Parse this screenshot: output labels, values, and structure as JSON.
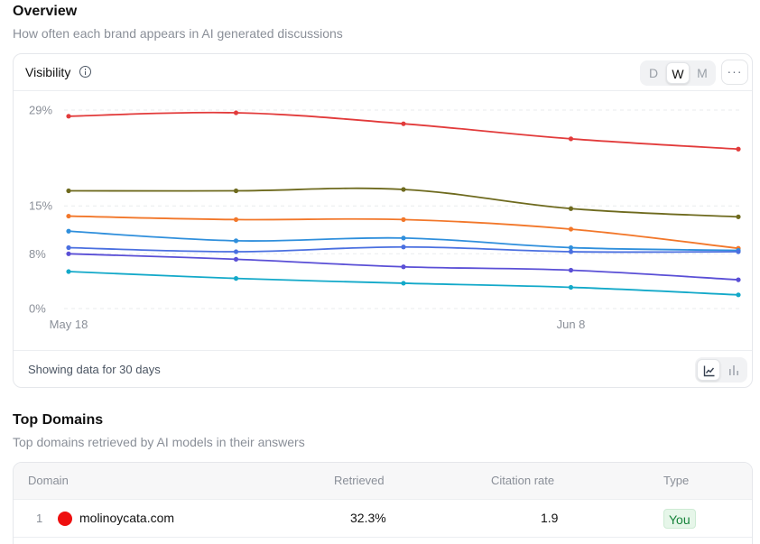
{
  "overview": {
    "title": "Overview",
    "subtitle": "How often each brand appears in AI generated discussions"
  },
  "visibility_card": {
    "title": "Visibility",
    "info_icon": "info-icon",
    "periods": [
      "D",
      "W",
      "M"
    ],
    "active_period": "W",
    "more_label": "···",
    "footer_text": "Showing data for 30 days",
    "view_toggle": {
      "options": [
        "line-chart-icon",
        "bar-chart-icon"
      ],
      "active": "line-chart-icon"
    }
  },
  "chart_data": {
    "type": "line",
    "ytick_labels": [
      "29%",
      "15%",
      "8%",
      "0%"
    ],
    "yticks": [
      29,
      15,
      8,
      0
    ],
    "ylim": [
      0,
      29
    ],
    "xtick_labels": [
      "May 18",
      "Jun 8"
    ],
    "x": [
      "May 18",
      "May 25",
      "Jun 1",
      "Jun 8",
      "Jun 15"
    ],
    "grid": true,
    "series": [
      {
        "color": "#e23b3b",
        "values": [
          28.1,
          28.6,
          27.0,
          24.8,
          23.3
        ]
      },
      {
        "color": "#6e6a1e",
        "values": [
          17.2,
          17.2,
          17.4,
          14.6,
          13.4
        ]
      },
      {
        "color": "#f2772a",
        "values": [
          13.5,
          13.0,
          13.0,
          11.6,
          8.8
        ]
      },
      {
        "color": "#2f8fdc",
        "values": [
          11.3,
          9.9,
          10.3,
          8.9,
          8.5
        ]
      },
      {
        "color": "#4a6fe0",
        "values": [
          8.9,
          8.3,
          9.0,
          8.3,
          8.3
        ]
      },
      {
        "color": "#5a4fd6",
        "values": [
          8.0,
          7.2,
          6.1,
          5.6,
          4.2
        ]
      },
      {
        "color": "#13a9c9",
        "values": [
          5.4,
          4.4,
          3.7,
          3.1,
          2.0
        ]
      }
    ]
  },
  "top_domains": {
    "title": "Top Domains",
    "subtitle": "Top domains retrieved by AI models in their answers",
    "columns": [
      "Domain",
      "Retrieved",
      "Citation rate",
      "Type"
    ],
    "rows": [
      {
        "rank": "1",
        "domain": "molinoycata.com",
        "dot_color": "#ee0f0f",
        "retrieved": "32.3%",
        "citation_rate": "1.9",
        "type": "You"
      }
    ]
  }
}
